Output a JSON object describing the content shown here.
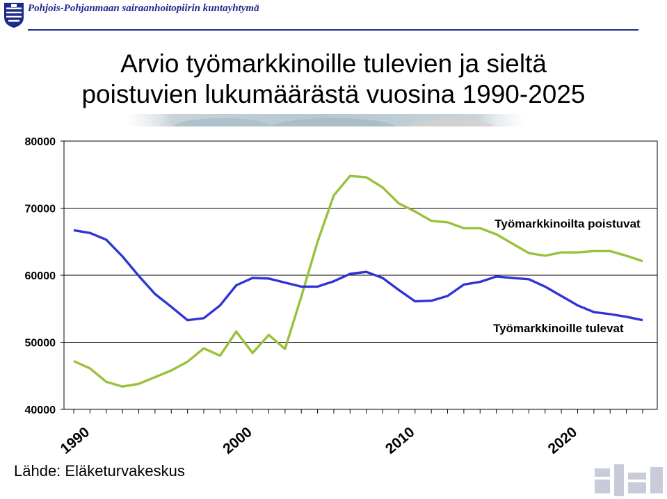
{
  "header": {
    "organization": "Pohjois-Pohjanmaan sairaanhoitopiirin kuntayhtymä",
    "logo_icon": "coat-of-arms-icon",
    "accent_color": "#1c2a8c"
  },
  "slide": {
    "title_line1": "Arvio työmarkkinoille tulevien ja sieltä",
    "title_line2": "poistuvien lukumäärästä vuosina 1990-2025",
    "source": "Lähde: Eläketurvakeskus"
  },
  "chart_data": {
    "type": "line",
    "title": "",
    "xlabel": "",
    "ylabel": "",
    "x": [
      1990,
      1991,
      1992,
      1993,
      1994,
      1995,
      1996,
      1997,
      1998,
      1999,
      2000,
      2001,
      2002,
      2003,
      2004,
      2005,
      2006,
      2007,
      2008,
      2009,
      2010,
      2011,
      2012,
      2013,
      2014,
      2015,
      2016,
      2017,
      2018,
      2019,
      2020,
      2021,
      2022,
      2023,
      2024,
      2025
    ],
    "x_tick_labels": [
      "1990",
      "2000",
      "2010",
      "2020"
    ],
    "xlim": [
      1989.4,
      2025.9
    ],
    "ylim": [
      40000,
      80000
    ],
    "y_ticks": [
      40000,
      50000,
      60000,
      70000,
      80000
    ],
    "y_tick_labels": [
      "40000",
      "50000",
      "60000",
      "70000",
      "80000"
    ],
    "grid": "horizontal",
    "series": [
      {
        "name": "Työmarkkinoilta poistuvat",
        "color": "#99c13a",
        "label_anchor_x": 2015.9,
        "label_anchor_y": 67100,
        "values": [
          47200,
          46100,
          44100,
          43400,
          43800,
          44800,
          45800,
          47100,
          49100,
          48000,
          51600,
          48400,
          51100,
          49000,
          56800,
          65000,
          71900,
          74800,
          74600,
          73100,
          70700,
          69500,
          68100,
          67900,
          67000,
          67000,
          66100,
          64700,
          63300,
          62900,
          63400,
          63400,
          63600,
          63600,
          62900,
          62100
        ]
      },
      {
        "name": "Työmarkkinoille tulevat",
        "color": "#2f34d6",
        "label_anchor_x": 2015.8,
        "label_anchor_y": 51500,
        "values": [
          66700,
          66300,
          65300,
          62800,
          59900,
          57200,
          55300,
          53300,
          53600,
          55500,
          58500,
          59600,
          59500,
          58900,
          58300,
          58300,
          59100,
          60200,
          60500,
          59600,
          57800,
          56100,
          56200,
          56900,
          58600,
          59000,
          59800,
          59600,
          59400,
          58300,
          56900,
          55500,
          54500,
          54200,
          53800,
          53300
        ]
      }
    ]
  }
}
